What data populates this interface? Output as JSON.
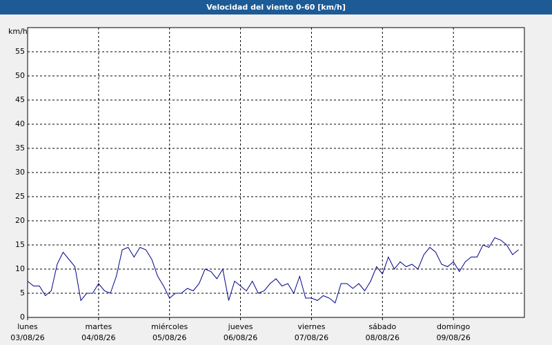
{
  "chart_data": {
    "type": "line",
    "title": "Velocidad del viento 0-60 [km/h]",
    "y_label": "km/h",
    "x": [
      0,
      2,
      4,
      6,
      8,
      10,
      12,
      14,
      16,
      18,
      20,
      22,
      24,
      26,
      28,
      30,
      32,
      34,
      36,
      38,
      40,
      42,
      44,
      46,
      48,
      50,
      52,
      54,
      56,
      58,
      60,
      62,
      64,
      66,
      68,
      70,
      72,
      74,
      76,
      78,
      80,
      82,
      84,
      86,
      88,
      90,
      92,
      94,
      96,
      98,
      100,
      102,
      104,
      106,
      108,
      110,
      112,
      114,
      116,
      118,
      120,
      122,
      124,
      126,
      128,
      130,
      132,
      134,
      136,
      138,
      140,
      142,
      144,
      146,
      148,
      150,
      152,
      154,
      156,
      158,
      160,
      162,
      164,
      166
    ],
    "series": [
      {
        "name": "Velocidad del viento",
        "color": "#00008b",
        "values": [
          7.5,
          6.5,
          6.5,
          4.5,
          5.5,
          11,
          13.5,
          12,
          10.5,
          3.5,
          5,
          5,
          7,
          5.5,
          5,
          8.5,
          14,
          14.5,
          12.5,
          14.5,
          14,
          12,
          8.5,
          6.5,
          4,
          5,
          5,
          6,
          5.5,
          7,
          10,
          9.5,
          8,
          10,
          3.5,
          7.5,
          6.5,
          5.5,
          7.5,
          5,
          5.5,
          7,
          8,
          6.5,
          7,
          5,
          8.5,
          4,
          4,
          3.5,
          4.5,
          4,
          3,
          7,
          7,
          6,
          7,
          5.5,
          7.5,
          10.5,
          9,
          12.5,
          10,
          11.5,
          10.5,
          11,
          10,
          13,
          14.5,
          13.5,
          11,
          10.5,
          11.5,
          9.5,
          11.5,
          12.5,
          12.5,
          15,
          14.5,
          16.5,
          16,
          15,
          13,
          14
        ]
      }
    ],
    "xlim": [
      0,
      168
    ],
    "xticks": [
      {
        "value": 0,
        "label": [
          "lunes",
          "03/08/26"
        ]
      },
      {
        "value": 24,
        "label": [
          "martes",
          "04/08/26"
        ]
      },
      {
        "value": 48,
        "label": [
          "miércoles",
          "05/08/26"
        ]
      },
      {
        "value": 72,
        "label": [
          "jueves",
          "06/08/26"
        ]
      },
      {
        "value": 96,
        "label": [
          "viernes",
          "07/08/26"
        ]
      },
      {
        "value": 120,
        "label": [
          "sábado",
          "08/08/26"
        ]
      },
      {
        "value": 144,
        "label": [
          "domingo",
          "09/08/26"
        ]
      }
    ],
    "ylim": [
      0,
      60
    ],
    "yticks": [
      0,
      5,
      10,
      15,
      20,
      25,
      30,
      35,
      40,
      45,
      50,
      55
    ],
    "grid": true
  }
}
